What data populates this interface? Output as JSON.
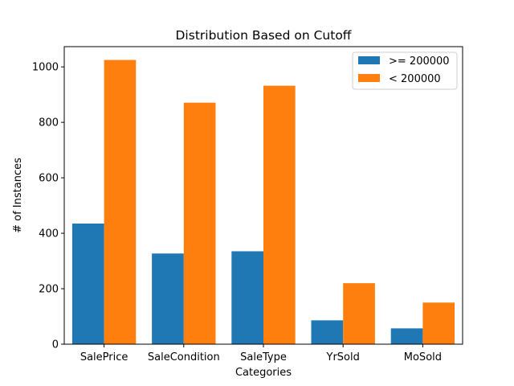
{
  "chart_data": {
    "type": "bar",
    "title": "Distribution Based on Cutoff",
    "xlabel": "Categories",
    "ylabel": "# of Instances",
    "categories": [
      "SalePrice",
      "SaleCondition",
      "SaleType",
      "YrSold",
      "MoSold"
    ],
    "series": [
      {
        "name": ">= 200000",
        "color": "#1f77b4",
        "values": [
          435,
          327,
          335,
          86,
          57
        ]
      },
      {
        "name": "< 200000",
        "color": "#ff7f0e",
        "values": [
          1025,
          871,
          932,
          220,
          150
        ]
      }
    ],
    "ylim": [
      0,
      1073
    ],
    "yticks": [
      0,
      200,
      400,
      600,
      800,
      1000
    ],
    "grid": false,
    "legend": "top-right"
  }
}
